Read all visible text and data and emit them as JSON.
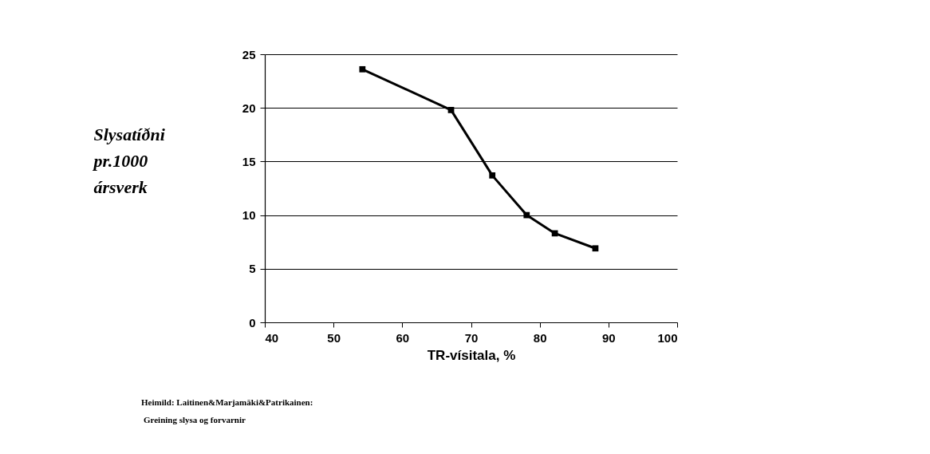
{
  "chart_data": {
    "type": "line",
    "xlabel": "TR-vísitala, %",
    "ylabel": "Slysatíðni\npr.1000\nársverk",
    "x": [
      54.2,
      67.1,
      73.1,
      78.1,
      82.2,
      88.1
    ],
    "series": [
      {
        "color": "#000000",
        "values": [
          23.6,
          19.8,
          13.7,
          10.0,
          8.3,
          6.9
        ]
      }
    ],
    "xlim": [
      40,
      100
    ],
    "xticks": [
      40,
      50,
      60,
      70,
      80,
      90,
      100
    ],
    "ylim": [
      0,
      25
    ],
    "yticks": [
      0,
      5,
      10,
      15,
      20,
      25
    ],
    "grid": "y",
    "marker": "square",
    "line_style": "solid",
    "annotations": [
      "Heimild: Laitinen&Marjamäki&Patrikainen:",
      "Greining slysa og forvarnir"
    ]
  }
}
